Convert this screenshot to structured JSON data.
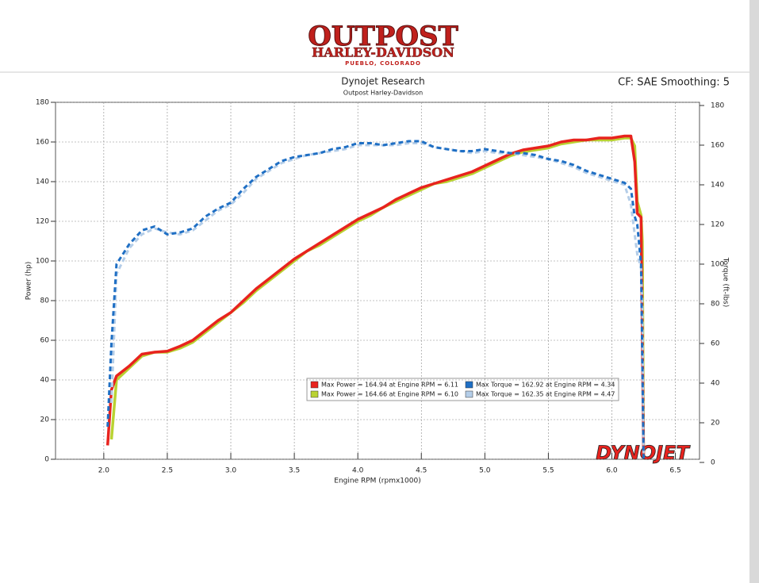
{
  "header": {
    "logo_name": "OUTPOST",
    "logo_brand": "HARLEY-DAVIDSON",
    "logo_place": "PUEBLO, COLORADO"
  },
  "chart_data": {
    "type": "line",
    "title": "Dynojet Research",
    "subtitle": "Outpost Harley-Davidson",
    "settings_label": "CF: SAE Smoothing: 5",
    "x_label": "Engine RPM (rpmx1000)",
    "y_label": "Power (hp)",
    "y2_label": "Torque (ft-lbs)",
    "watermark": "DYNOJET",
    "grid": true,
    "xlim": [
      1.62,
      6.69
    ],
    "xticks": [
      {
        "value": 2,
        "label": "2.0"
      },
      2.5,
      {
        "value": 3,
        "label": "3.0"
      },
      3.5,
      {
        "value": 4,
        "label": "4.0"
      },
      4.5,
      {
        "value": 5,
        "label": "5.0"
      },
      5.5,
      {
        "value": 6,
        "label": "6.0"
      },
      6.5
    ],
    "ylim": [
      0,
      180
    ],
    "yticks": [
      0,
      20,
      40,
      60,
      80,
      100,
      120,
      140,
      160,
      180
    ],
    "y2lim": [
      0,
      180
    ],
    "y2ticks": [
      0,
      20,
      40,
      60,
      80,
      100,
      120,
      140,
      160,
      180
    ],
    "x": [
      2.03,
      2.06,
      2.1,
      2.2,
      2.3,
      2.4,
      2.5,
      2.6,
      2.7,
      2.8,
      2.9,
      3.0,
      3.1,
      3.2,
      3.3,
      3.4,
      3.5,
      3.6,
      3.7,
      3.8,
      3.9,
      4.0,
      4.1,
      4.2,
      4.3,
      4.4,
      4.5,
      4.6,
      4.7,
      4.8,
      4.9,
      5.0,
      5.1,
      5.2,
      5.3,
      5.4,
      5.5,
      5.6,
      5.7,
      5.8,
      5.9,
      6.0,
      6.1,
      6.15,
      6.18,
      6.2,
      6.23,
      6.24,
      6.25
    ],
    "series": [
      {
        "name": "Max Power = 164.94 at Engine RPM = 6.11",
        "color": "#e8231e",
        "dash": false,
        "values": [
          7,
          35,
          42,
          47,
          53,
          54,
          54.5,
          57,
          60,
          65,
          70,
          74,
          80,
          86,
          91,
          96,
          101,
          105,
          109,
          113,
          117,
          121,
          124,
          127,
          131,
          134,
          137,
          139,
          141,
          143,
          145,
          148,
          151,
          154,
          156,
          157,
          158,
          160,
          161,
          161,
          162,
          162,
          163,
          163,
          150,
          124,
          122,
          60,
          2
        ]
      },
      {
        "name": "Max Power = 164.66 at Engine RPM = 6.10",
        "color": "#b9d232",
        "dash": false,
        "values": [
          null,
          10,
          40,
          46,
          52,
          54,
          54,
          56,
          59,
          64,
          69,
          74,
          79,
          85,
          90,
          95,
          100,
          105,
          108,
          112,
          116,
          120,
          123,
          127,
          130,
          133,
          136,
          139,
          140,
          142,
          144,
          147,
          150,
          153,
          155,
          156,
          157,
          159,
          160,
          161,
          161,
          161,
          162,
          162,
          158,
          130,
          123,
          110,
          2
        ]
      },
      {
        "name": "Max Torque = 162.92 at Engine RPM = 4.34",
        "color": "#1f6fc4",
        "dash": true,
        "axis": "y2",
        "values": [
          18,
          60,
          100,
          110,
          117,
          119,
          115,
          116,
          118,
          124,
          128,
          131,
          138,
          144,
          148,
          152,
          154,
          155,
          156,
          158,
          159,
          161,
          161,
          160,
          161,
          162,
          162,
          159,
          158,
          157,
          157,
          158,
          157,
          156,
          156,
          155,
          153,
          152,
          150,
          147,
          145,
          143,
          141,
          138,
          124,
          120,
          100,
          50,
          2
        ]
      },
      {
        "name": "Max Torque = 162.35 at Engine RPM = 4.47",
        "color": "#b4cde8",
        "dash": true,
        "axis": "y2",
        "values": [
          null,
          30,
          95,
          108,
          115,
          118,
          116,
          115,
          117,
          122,
          127,
          130,
          136,
          143,
          147,
          151,
          153,
          155,
          156,
          157,
          158,
          160,
          160,
          160,
          160,
          161,
          161,
          159,
          158,
          157,
          156,
          157,
          156,
          156,
          155,
          154,
          153,
          151,
          149,
          146,
          144,
          142,
          140,
          130,
          115,
          105,
          98,
          80,
          2
        ]
      }
    ]
  }
}
